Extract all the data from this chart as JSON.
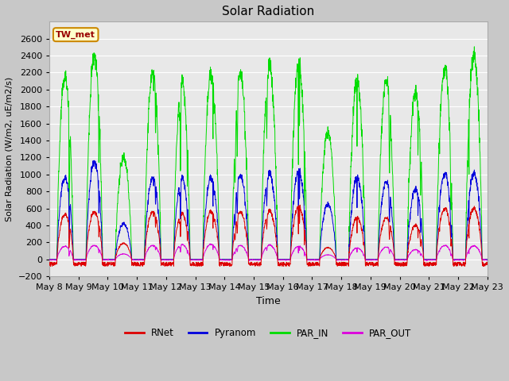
{
  "title": "Solar Radiation",
  "ylabel": "Solar Radiation (W/m2, uE/m2/s)",
  "xlabel": "Time",
  "ylim": [
    -200,
    2800
  ],
  "yticks": [
    -200,
    0,
    200,
    400,
    600,
    800,
    1000,
    1200,
    1400,
    1600,
    1800,
    2000,
    2200,
    2400,
    2600
  ],
  "annotation": "TW_met",
  "annotation_bg": "#ffffcc",
  "annotation_border": "#cc8800",
  "colors": {
    "RNet": "#dd0000",
    "Pyranom": "#0000dd",
    "PAR_IN": "#00dd00",
    "PAR_OUT": "#dd00dd"
  },
  "fig_bg": "#c8c8c8",
  "plot_bg": "#e8e8e8",
  "n_days": 15,
  "start_day": 8,
  "end_day": 23,
  "par_in_peaks": [
    2150,
    2400,
    1200,
    2200,
    2100,
    2200,
    2200,
    2280,
    2300,
    1500,
    2100,
    2100,
    1950,
    2250,
    2400
  ],
  "pyranom_peaks": [
    960,
    1150,
    420,
    960,
    960,
    970,
    990,
    1010,
    1040,
    650,
    960,
    910,
    820,
    1010,
    1010
  ],
  "rnet_peaks": [
    530,
    560,
    190,
    560,
    540,
    570,
    560,
    570,
    620,
    140,
    490,
    490,
    400,
    600,
    600
  ],
  "par_out_peaks": [
    155,
    165,
    65,
    165,
    175,
    180,
    165,
    170,
    155,
    55,
    135,
    145,
    115,
    165,
    160
  ]
}
